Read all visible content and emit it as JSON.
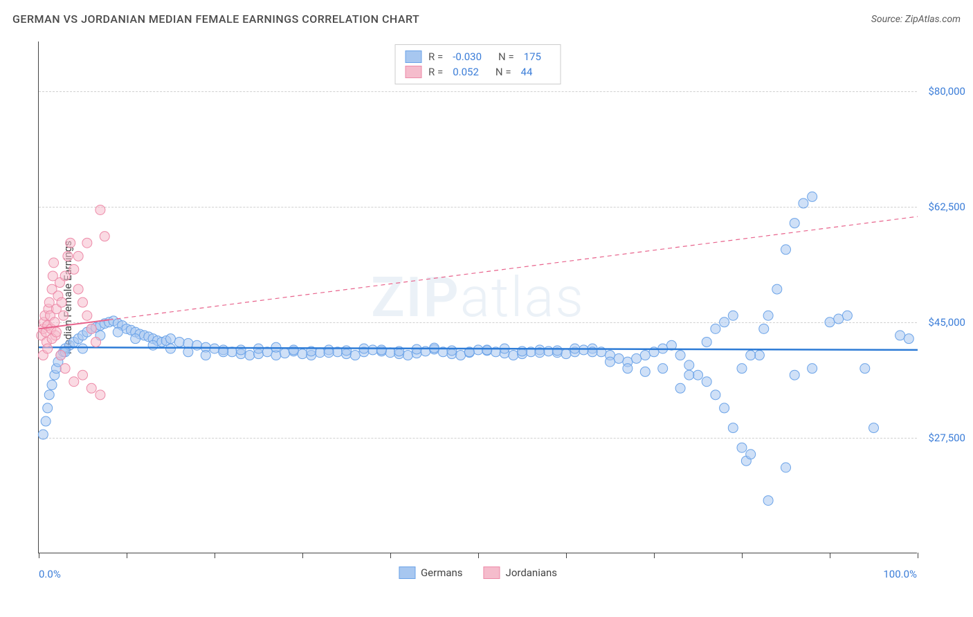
{
  "title": "GERMAN VS JORDANIAN MEDIAN FEMALE EARNINGS CORRELATION CHART",
  "source": "Source: ZipAtlas.com",
  "y_axis_title": "Median Female Earnings",
  "watermark": {
    "bold": "ZIP",
    "light": "atlas"
  },
  "chart": {
    "type": "scatter",
    "xlim": [
      0,
      100
    ],
    "ylim": [
      10000,
      87500
    ],
    "x_tick_positions": [
      0,
      10,
      20,
      30,
      40,
      50,
      60,
      70,
      80,
      90,
      100
    ],
    "x_label_min": "0.0%",
    "x_label_max": "100.0%",
    "y_gridlines": [
      {
        "v": 27500,
        "label": "$27,500"
      },
      {
        "v": 45000,
        "label": "$45,000"
      },
      {
        "v": 62500,
        "label": "$62,500"
      },
      {
        "v": 80000,
        "label": "$80,000"
      }
    ],
    "background_color": "#ffffff",
    "grid_color": "#d0d0d0",
    "marker_radius": 7,
    "marker_opacity": 0.55,
    "series": [
      {
        "name": "Germans",
        "fill": "#a7c7f0",
        "stroke": "#6ba3e8",
        "trend": {
          "type": "solid",
          "color": "#2d7bd6",
          "width": 2.5,
          "y_start": 41200,
          "y_end": 40800
        },
        "R": "-0.030",
        "N": "175",
        "points": [
          [
            0.5,
            28000
          ],
          [
            0.8,
            30000
          ],
          [
            1,
            32000
          ],
          [
            1.2,
            34000
          ],
          [
            1.5,
            35500
          ],
          [
            1.8,
            37000
          ],
          [
            2,
            38000
          ],
          [
            2.2,
            39000
          ],
          [
            2.5,
            40000
          ],
          [
            2.8,
            40500
          ],
          [
            3,
            41000
          ],
          [
            3.5,
            41500
          ],
          [
            4,
            42000
          ],
          [
            4.5,
            42500
          ],
          [
            5,
            43000
          ],
          [
            5.5,
            43500
          ],
          [
            6,
            44000
          ],
          [
            6.5,
            44200
          ],
          [
            7,
            44500
          ],
          [
            7.5,
            44800
          ],
          [
            8,
            45000
          ],
          [
            8.5,
            45200
          ],
          [
            9,
            44800
          ],
          [
            9.5,
            44500
          ],
          [
            10,
            44000
          ],
          [
            10.5,
            43800
          ],
          [
            11,
            43500
          ],
          [
            11.5,
            43200
          ],
          [
            12,
            43000
          ],
          [
            12.5,
            42800
          ],
          [
            13,
            42500
          ],
          [
            13.5,
            42200
          ],
          [
            14,
            42000
          ],
          [
            14.5,
            42200
          ],
          [
            15,
            42500
          ],
          [
            16,
            42000
          ],
          [
            17,
            41800
          ],
          [
            18,
            41500
          ],
          [
            19,
            41200
          ],
          [
            20,
            41000
          ],
          [
            21,
            40800
          ],
          [
            22,
            40500
          ],
          [
            23,
            40200
          ],
          [
            24,
            40000
          ],
          [
            25,
            40200
          ],
          [
            26,
            40500
          ],
          [
            27,
            40000
          ],
          [
            28,
            40300
          ],
          [
            29,
            40600
          ],
          [
            30,
            40200
          ],
          [
            31,
            40000
          ],
          [
            32,
            40400
          ],
          [
            33,
            40800
          ],
          [
            34,
            40500
          ],
          [
            35,
            40200
          ],
          [
            36,
            40000
          ],
          [
            37,
            40500
          ],
          [
            38,
            40800
          ],
          [
            39,
            40600
          ],
          [
            40,
            40400
          ],
          [
            41,
            40200
          ],
          [
            42,
            40000
          ],
          [
            43,
            40300
          ],
          [
            44,
            40600
          ],
          [
            45,
            40900
          ],
          [
            46,
            40500
          ],
          [
            47,
            40200
          ],
          [
            48,
            40000
          ],
          [
            49,
            40400
          ],
          [
            50,
            40800
          ],
          [
            51,
            40700
          ],
          [
            52,
            40500
          ],
          [
            53,
            40300
          ],
          [
            54,
            40000
          ],
          [
            55,
            40200
          ],
          [
            56,
            40500
          ],
          [
            57,
            40800
          ],
          [
            58,
            40600
          ],
          [
            59,
            40400
          ],
          [
            60,
            40200
          ],
          [
            61,
            40500
          ],
          [
            62,
            40800
          ],
          [
            63,
            41000
          ],
          [
            64,
            40500
          ],
          [
            65,
            40000
          ],
          [
            66,
            39500
          ],
          [
            67,
            39000
          ],
          [
            68,
            39500
          ],
          [
            69,
            40000
          ],
          [
            70,
            40500
          ],
          [
            71,
            41000
          ],
          [
            72,
            41500
          ],
          [
            73,
            40000
          ],
          [
            74,
            38500
          ],
          [
            75,
            37000
          ],
          [
            76,
            36000
          ],
          [
            77,
            34000
          ],
          [
            78,
            32000
          ],
          [
            79,
            29000
          ],
          [
            80,
            26000
          ],
          [
            80.5,
            24000
          ],
          [
            81,
            25000
          ],
          [
            82,
            40000
          ],
          [
            82.5,
            44000
          ],
          [
            83,
            46000
          ],
          [
            84,
            50000
          ],
          [
            85,
            56000
          ],
          [
            86,
            60000
          ],
          [
            87,
            63000
          ],
          [
            88,
            64000
          ],
          [
            83,
            18000
          ],
          [
            85,
            23000
          ],
          [
            86,
            37000
          ],
          [
            88,
            38000
          ],
          [
            90,
            45000
          ],
          [
            91,
            45500
          ],
          [
            92,
            46000
          ],
          [
            94,
            38000
          ],
          [
            95,
            29000
          ],
          [
            98,
            43000
          ],
          [
            99,
            42500
          ],
          [
            73,
            35000
          ],
          [
            74,
            37000
          ],
          [
            76,
            42000
          ],
          [
            77,
            44000
          ],
          [
            78,
            45000
          ],
          [
            79,
            46000
          ],
          [
            80,
            38000
          ],
          [
            81,
            40000
          ],
          [
            3,
            40500
          ],
          [
            5,
            41000
          ],
          [
            7,
            43000
          ],
          [
            9,
            43500
          ],
          [
            11,
            42500
          ],
          [
            13,
            41500
          ],
          [
            15,
            41000
          ],
          [
            17,
            40500
          ],
          [
            19,
            40000
          ],
          [
            21,
            40500
          ],
          [
            23,
            40800
          ],
          [
            25,
            41000
          ],
          [
            27,
            41200
          ],
          [
            29,
            40800
          ],
          [
            31,
            40600
          ],
          [
            33,
            40400
          ],
          [
            35,
            40700
          ],
          [
            37,
            41000
          ],
          [
            39,
            40800
          ],
          [
            41,
            40600
          ],
          [
            43,
            40900
          ],
          [
            45,
            41100
          ],
          [
            47,
            40700
          ],
          [
            49,
            40500
          ],
          [
            51,
            40800
          ],
          [
            53,
            41000
          ],
          [
            55,
            40600
          ],
          [
            57,
            40400
          ],
          [
            59,
            40700
          ],
          [
            61,
            41000
          ],
          [
            63,
            40500
          ],
          [
            65,
            39000
          ],
          [
            67,
            38000
          ],
          [
            69,
            37500
          ],
          [
            71,
            38000
          ]
        ]
      },
      {
        "name": "Jordanians",
        "fill": "#f5bccc",
        "stroke": "#ed8aa8",
        "trend": {
          "type": "solid_then_dashed",
          "color": "#e8638c",
          "width": 2,
          "y_start": 44000,
          "y_end": 61000,
          "solid_until_x": 8
        },
        "R": "0.052",
        "N": "44",
        "points": [
          [
            0.3,
            43000
          ],
          [
            0.5,
            44000
          ],
          [
            0.6,
            45000
          ],
          [
            0.7,
            46000
          ],
          [
            0.8,
            43500
          ],
          [
            0.9,
            42000
          ],
          [
            1,
            44500
          ],
          [
            1.1,
            47000
          ],
          [
            1.2,
            48000
          ],
          [
            1.3,
            46000
          ],
          [
            1.4,
            44000
          ],
          [
            1.5,
            50000
          ],
          [
            1.6,
            52000
          ],
          [
            1.7,
            54000
          ],
          [
            1.8,
            45000
          ],
          [
            1.9,
            43000
          ],
          [
            2,
            47000
          ],
          [
            2.2,
            49000
          ],
          [
            2.4,
            51000
          ],
          [
            2.6,
            48000
          ],
          [
            2.8,
            46000
          ],
          [
            3,
            52000
          ],
          [
            3.3,
            55000
          ],
          [
            3.6,
            57000
          ],
          [
            4,
            53000
          ],
          [
            4.5,
            50000
          ],
          [
            5,
            48000
          ],
          [
            5.5,
            46000
          ],
          [
            6,
            44000
          ],
          [
            6.5,
            42000
          ],
          [
            7,
            62000
          ],
          [
            7.5,
            58000
          ],
          [
            2.5,
            40000
          ],
          [
            3,
            38000
          ],
          [
            4,
            36000
          ],
          [
            5,
            37000
          ],
          [
            6,
            35000
          ],
          [
            7,
            34000
          ],
          [
            4.5,
            55000
          ],
          [
            5.5,
            57000
          ],
          [
            0.5,
            40000
          ],
          [
            1,
            41000
          ],
          [
            1.5,
            42500
          ],
          [
            2,
            43500
          ]
        ]
      }
    ]
  },
  "legend_bottom": [
    {
      "name": "Germans",
      "fill": "#a7c7f0",
      "stroke": "#6ba3e8"
    },
    {
      "name": "Jordanians",
      "fill": "#f5bccc",
      "stroke": "#ed8aa8"
    }
  ]
}
